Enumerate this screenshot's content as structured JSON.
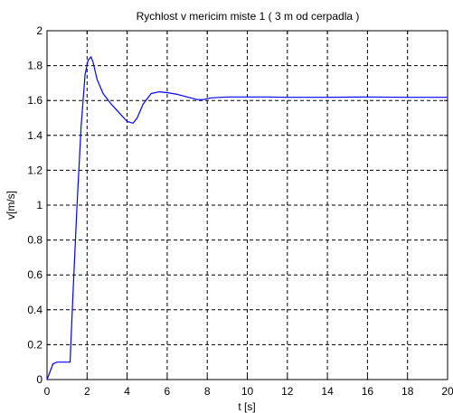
{
  "chart_data": {
    "type": "line",
    "title": "Rychlost v mericim miste 1 ( 3 m od cerpadla )",
    "xlabel": "t [s]",
    "ylabel": "v[m/s]",
    "xlim": [
      0,
      20
    ],
    "ylim": [
      0,
      2
    ],
    "xticks": [
      "0",
      "2",
      "4",
      "6",
      "8",
      "10",
      "12",
      "14",
      "16",
      "18",
      "20"
    ],
    "yticks": [
      "0",
      "0.2",
      "0.4",
      "0.6",
      "0.8",
      "1",
      "1.2",
      "1.4",
      "1.6",
      "1.8",
      "2"
    ],
    "grid": true,
    "series": [
      {
        "color": "#0000ff",
        "x": [
          0,
          0.3,
          0.5,
          1.0,
          1.15,
          1.3,
          1.5,
          1.7,
          1.9,
          2.05,
          2.2,
          2.3,
          2.5,
          2.8,
          3.2,
          3.6,
          4.0,
          4.3,
          4.5,
          4.8,
          5.2,
          5.6,
          6.0,
          6.5,
          7.0,
          7.5,
          7.8,
          8.2,
          9.0,
          10,
          11,
          12,
          14,
          16,
          18,
          20
        ],
        "y": [
          0,
          0.09,
          0.1,
          0.1,
          0.1,
          0.5,
          1.0,
          1.45,
          1.75,
          1.83,
          1.85,
          1.82,
          1.72,
          1.64,
          1.58,
          1.53,
          1.48,
          1.47,
          1.5,
          1.58,
          1.64,
          1.65,
          1.645,
          1.635,
          1.62,
          1.605,
          1.605,
          1.615,
          1.62,
          1.62,
          1.62,
          1.618,
          1.618,
          1.62,
          1.618,
          1.618
        ]
      }
    ]
  }
}
